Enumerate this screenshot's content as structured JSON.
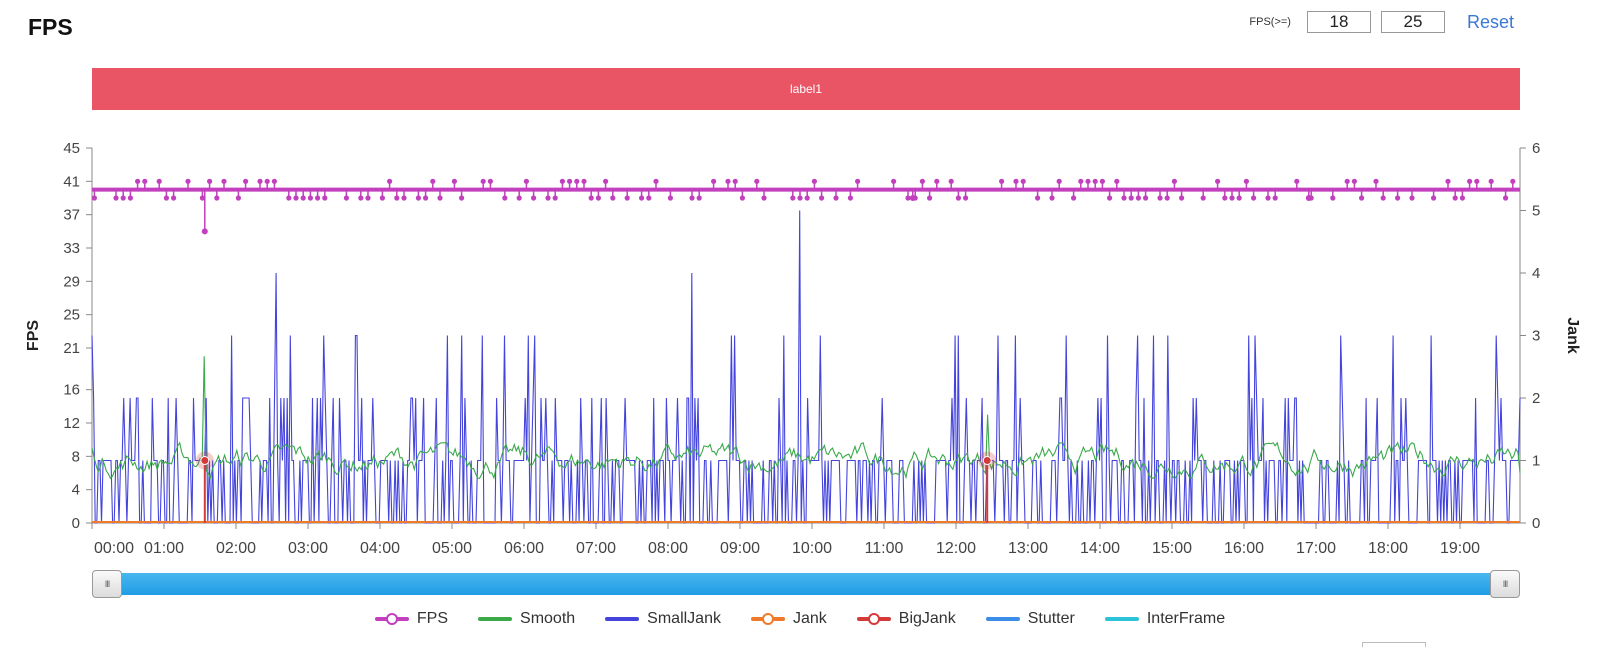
{
  "header": {
    "title": "FPS",
    "fps_threshold_label": "FPS(>=)",
    "threshold_low": "18",
    "threshold_high": "25",
    "reset_label": "Reset"
  },
  "band": {
    "label": "label1",
    "color": "#ea5566"
  },
  "legend": [
    {
      "name": "FPS",
      "color": "#c23fbe",
      "marker": true
    },
    {
      "name": "Smooth",
      "color": "#3aa94a",
      "marker": false
    },
    {
      "name": "SmallJank",
      "color": "#4444dd",
      "marker": false
    },
    {
      "name": "Jank",
      "color": "#f07a2a",
      "marker": true
    },
    {
      "name": "BigJank",
      "color": "#d43a3a",
      "marker": true
    },
    {
      "name": "Stutter",
      "color": "#3b8ee8",
      "marker": false
    },
    {
      "name": "InterFrame",
      "color": "#2cc3d8",
      "marker": false
    }
  ],
  "chart_data": {
    "type": "line",
    "x_range_seconds": [
      0,
      1190
    ],
    "xtick_labels": [
      "00:00",
      "01:00",
      "02:00",
      "03:00",
      "04:00",
      "05:00",
      "06:00",
      "07:00",
      "08:00",
      "09:00",
      "10:00",
      "11:00",
      "12:00",
      "13:00",
      "14:00",
      "15:00",
      "16:00",
      "17:00",
      "18:00",
      "19:00"
    ],
    "ylabel_left": "FPS",
    "ylabel_right": "Jank",
    "y_left_ticks": [
      0,
      4,
      8,
      12,
      16,
      21,
      25,
      29,
      33,
      37,
      41,
      45
    ],
    "y_right_ticks": [
      0,
      1,
      2,
      3,
      4,
      5,
      6
    ],
    "ylim_left": [
      0,
      45
    ],
    "ylim_right": [
      0,
      6
    ],
    "series": [
      {
        "name": "FPS",
        "axis": "left",
        "baseline": 40,
        "dips": [
          {
            "t": 94,
            "v": 35
          },
          {
            "t": 684,
            "v": 39
          },
          {
            "t": 1014,
            "v": 39
          }
        ],
        "x": [
          0,
          94,
          684,
          1014,
          1190
        ],
        "y": [
          40,
          35,
          39,
          39,
          40
        ]
      },
      {
        "name": "Smooth",
        "axis": "left",
        "typical_range": [
          5,
          10
        ],
        "x": [
          0,
          94,
          746,
          1190
        ],
        "y": [
          9,
          20,
          13,
          6
        ]
      },
      {
        "name": "SmallJank",
        "axis": "right",
        "spike_max": 5,
        "x": [
          0,
          153,
          500,
          590,
          1190
        ],
        "y": [
          3,
          4,
          4,
          5,
          2
        ]
      },
      {
        "name": "Jank",
        "axis": "right",
        "x": [
          0,
          1190
        ],
        "y": [
          0,
          0
        ]
      },
      {
        "name": "BigJank",
        "axis": "right",
        "x": [
          94,
          746
        ],
        "y": [
          1,
          1
        ]
      },
      {
        "name": "Stutter",
        "axis": "right",
        "x": [
          0,
          1190
        ],
        "y": [
          0,
          0
        ]
      },
      {
        "name": "InterFrame",
        "axis": "right",
        "x": [
          0,
          1190
        ],
        "y": [
          0,
          0
        ]
      }
    ],
    "grid": true,
    "legend_position": "bottom"
  }
}
